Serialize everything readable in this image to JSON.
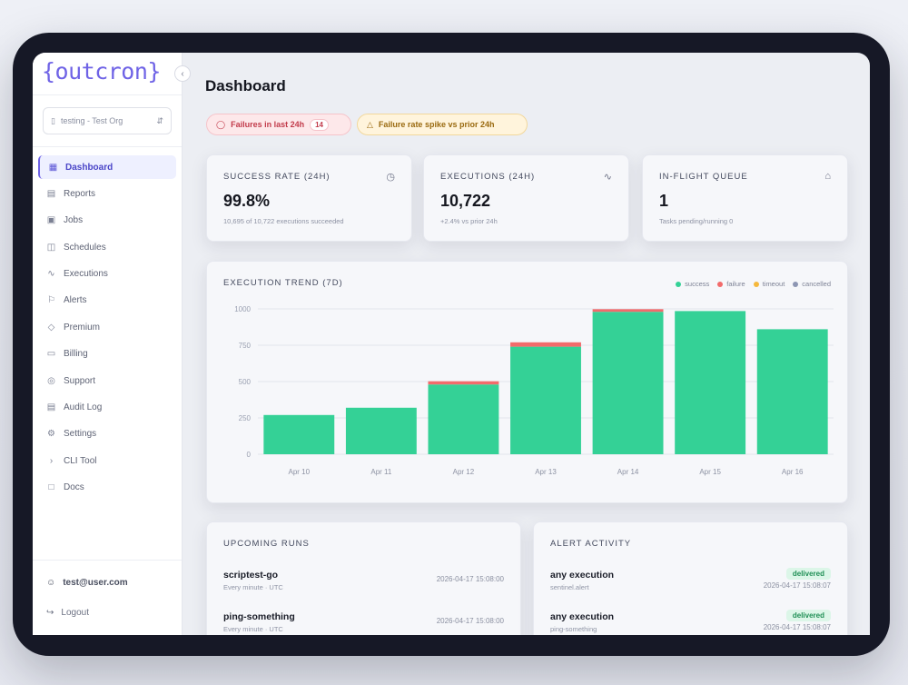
{
  "app": {
    "logo": "{outcron}"
  },
  "sidebar": {
    "org_select": "testing - Test Org",
    "items": [
      {
        "label": "Dashboard",
        "icon": "grid-icon",
        "active": true
      },
      {
        "label": "Reports",
        "icon": "bar-chart-icon"
      },
      {
        "label": "Jobs",
        "icon": "briefcase-icon"
      },
      {
        "label": "Schedules",
        "icon": "calendar-icon"
      },
      {
        "label": "Executions",
        "icon": "activity-icon"
      },
      {
        "label": "Alerts",
        "icon": "bell-icon"
      },
      {
        "label": "Premium",
        "icon": "gem-icon"
      },
      {
        "label": "Billing",
        "icon": "credit-card-icon"
      },
      {
        "label": "Support",
        "icon": "life-buoy-icon"
      },
      {
        "label": "Audit Log",
        "icon": "clipboard-icon"
      },
      {
        "label": "Settings",
        "icon": "gear-icon"
      },
      {
        "label": "CLI Tool",
        "icon": "terminal-icon"
      },
      {
        "label": "Docs",
        "icon": "book-icon"
      }
    ],
    "user_email": "test@user.com",
    "logout": "Logout"
  },
  "header": {
    "title": "Dashboard",
    "pills": {
      "failures": {
        "label": "Failures in last 24h",
        "count": "14"
      },
      "spike": {
        "label": "Failure rate spike vs prior 24h"
      }
    }
  },
  "kpis": [
    {
      "label": "SUCCESS RATE (24H)",
      "value": "99.8%",
      "sub": "10,695 of 10,722 executions succeeded",
      "icon": "clock-icon"
    },
    {
      "label": "EXECUTIONS (24H)",
      "value": "10,722",
      "sub": "+2.4% vs prior 24h",
      "icon": "pulse-icon"
    },
    {
      "label": "IN-FLIGHT QUEUE",
      "value": "1",
      "sub": "Tasks pending/running 0",
      "icon": "home-icon"
    }
  ],
  "chart_data": {
    "type": "bar",
    "title": "EXECUTION TREND (7D)",
    "categories": [
      "Apr 10",
      "Apr 11",
      "Apr 12",
      "Apr 13",
      "Apr 14",
      "Apr 15",
      "Apr 16"
    ],
    "series": [
      {
        "name": "success",
        "color": "#34d196",
        "values": [
          270,
          320,
          480,
          740,
          980,
          985,
          860
        ]
      },
      {
        "name": "failure",
        "color": "#f26b6b",
        "values": [
          0,
          0,
          22,
          30,
          18,
          0,
          0
        ]
      },
      {
        "name": "timeout",
        "color": "#f5b83d",
        "values": [
          0,
          0,
          0,
          0,
          0,
          0,
          0
        ]
      },
      {
        "name": "cancelled",
        "color": "#8d96b3",
        "values": [
          0,
          0,
          0,
          0,
          0,
          0,
          0
        ]
      }
    ],
    "yticks": [
      "0",
      "250",
      "500",
      "750",
      "1000"
    ],
    "ylim": [
      0,
      1000
    ],
    "grid": true,
    "legend": "top-right",
    "stacked": true
  },
  "upcoming": {
    "title": "UPCOMING RUNS",
    "rows": [
      {
        "name": "scriptest-go",
        "meta": "Every minute · UTC",
        "time": "2026-04-17 15:08:00"
      },
      {
        "name": "ping-something",
        "meta": "Every minute · UTC",
        "time": "2026-04-17 15:08:00"
      }
    ]
  },
  "alerts": {
    "title": "ALERT ACTIVITY",
    "rows": [
      {
        "name": "any execution",
        "meta": "sentinel.alert",
        "status": "delivered",
        "time": "2026-04-17 15:08:07"
      },
      {
        "name": "any execution",
        "meta": "ping-something",
        "status": "delivered",
        "time": "2026-04-17 15:08:07"
      }
    ]
  }
}
